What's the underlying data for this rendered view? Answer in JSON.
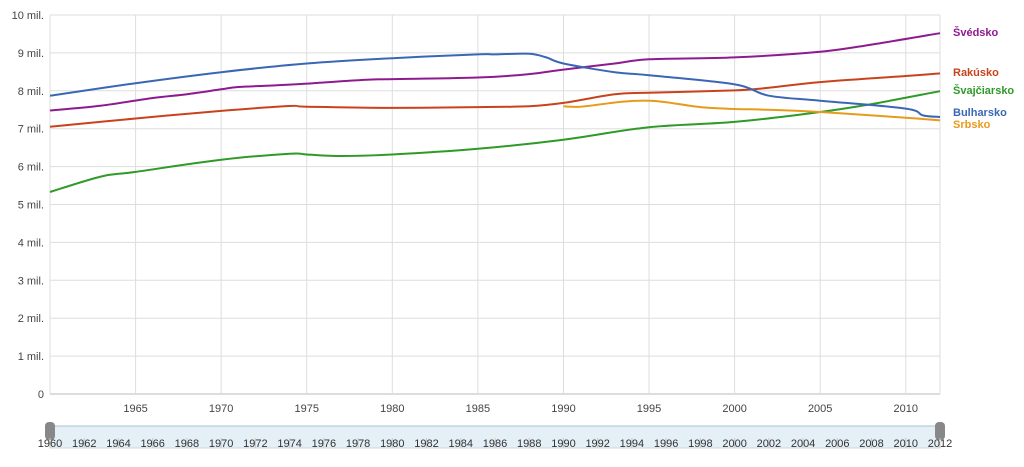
{
  "chart_data": {
    "type": "line",
    "xlim": [
      1960,
      2012
    ],
    "ylim": [
      0,
      10000000
    ],
    "y_ticks": [
      {
        "value": 0,
        "label": "0"
      },
      {
        "value": 1000000,
        "label": "1 mil."
      },
      {
        "value": 2000000,
        "label": "2 mil."
      },
      {
        "value": 3000000,
        "label": "3 mil."
      },
      {
        "value": 4000000,
        "label": "4 mil."
      },
      {
        "value": 5000000,
        "label": "5 mil."
      },
      {
        "value": 6000000,
        "label": "6 mil."
      },
      {
        "value": 7000000,
        "label": "7 mil."
      },
      {
        "value": 8000000,
        "label": "8 mil."
      },
      {
        "value": 9000000,
        "label": "9 mil."
      },
      {
        "value": 10000000,
        "label": "10 mil."
      }
    ],
    "x_ticks": [
      1965,
      1970,
      1975,
      1980,
      1985,
      1990,
      1995,
      2000,
      2005,
      2010
    ],
    "grid": true,
    "legend": "right, at line ends",
    "series": [
      {
        "name": "Švédsko",
        "color": "#8e1a8f",
        "x": [
          1960,
          1963,
          1966,
          1968,
          1970,
          1971,
          1973,
          1975,
          1978,
          1980,
          1985,
          1988,
          1990,
          1993,
          1995,
          2000,
          2005,
          2008,
          2012
        ],
        "y": [
          7480000,
          7610000,
          7810000,
          7910000,
          8040000,
          8100000,
          8140000,
          8190000,
          8280000,
          8310000,
          8350000,
          8440000,
          8560000,
          8720000,
          8830000,
          8880000,
          9030000,
          9220000,
          9520000
        ]
      },
      {
        "name": "Rakúsko",
        "color": "#c8431d",
        "x": [
          1960,
          1965,
          1970,
          1974,
          1975,
          1980,
          1985,
          1988,
          1990,
          1993,
          1995,
          2000,
          2002,
          2005,
          2010,
          2012
        ],
        "y": [
          7050000,
          7270000,
          7470000,
          7600000,
          7580000,
          7550000,
          7570000,
          7590000,
          7680000,
          7910000,
          7950000,
          8010000,
          8080000,
          8230000,
          8390000,
          8460000
        ]
      },
      {
        "name": "Švajčiarsko",
        "color": "#2e9a27",
        "x": [
          1960,
          1963,
          1965,
          1970,
          1974,
          1975,
          1977,
          1980,
          1985,
          1990,
          1995,
          2000,
          2005,
          2008,
          2012
        ],
        "y": [
          5330000,
          5740000,
          5860000,
          6180000,
          6340000,
          6320000,
          6280000,
          6320000,
          6470000,
          6710000,
          7040000,
          7180000,
          7440000,
          7650000,
          7990000
        ]
      },
      {
        "name": "Bulharsko",
        "color": "#3a67b5",
        "x": [
          1960,
          1965,
          1970,
          1975,
          1980,
          1985,
          1986,
          1988,
          1989,
          1990,
          1993,
          1995,
          2000,
          2002,
          2005,
          2010,
          2011,
          2012
        ],
        "y": [
          7870000,
          8200000,
          8490000,
          8720000,
          8860000,
          8960000,
          8960000,
          8980000,
          8880000,
          8720000,
          8490000,
          8410000,
          8170000,
          7870000,
          7740000,
          7530000,
          7350000,
          7310000
        ]
      },
      {
        "name": "Srbsko",
        "color": "#e89a1c",
        "x": [
          1990,
          1991,
          1993,
          1994,
          1995,
          1996,
          1998,
          2000,
          2002,
          2005,
          2008,
          2010,
          2012
        ],
        "y": [
          7590000,
          7580000,
          7690000,
          7730000,
          7740000,
          7700000,
          7570000,
          7520000,
          7500000,
          7440000,
          7350000,
          7290000,
          7220000
        ]
      }
    ],
    "navigator": {
      "labels": [
        "1960",
        "1962",
        "1964",
        "1966",
        "1968",
        "1970",
        "1972",
        "1974",
        "1976",
        "1978",
        "1980",
        "1982",
        "1984",
        "1986",
        "1988",
        "1990",
        "1992",
        "1994",
        "1996",
        "1998",
        "2000",
        "2002",
        "2004",
        "2006",
        "2008",
        "2010",
        "2012"
      ]
    }
  },
  "colors": {
    "grid": "#dddddd",
    "axis": "#bbbbbb",
    "navigator_fill": "#e4eff6",
    "navigator_handle": "#888888"
  }
}
